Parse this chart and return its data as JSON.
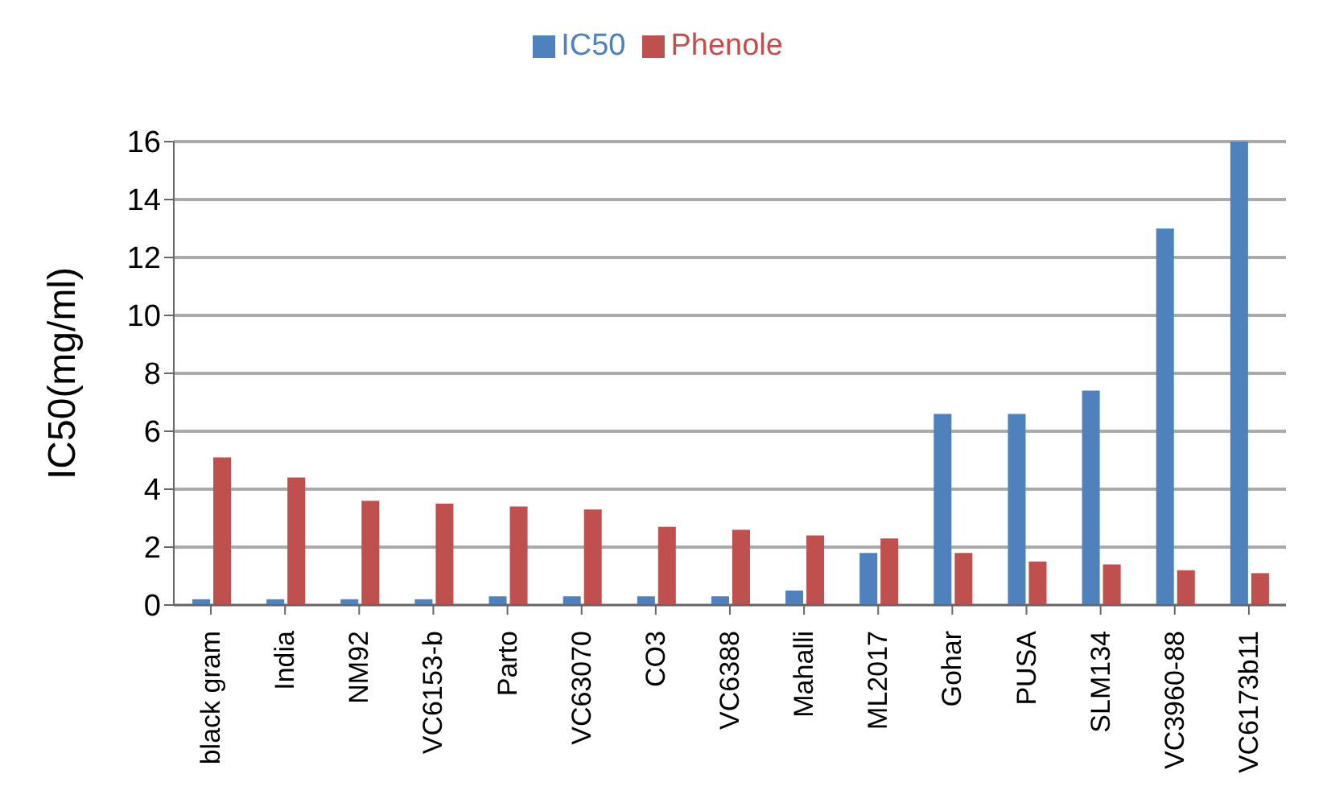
{
  "chart_data": {
    "type": "bar",
    "ylabel": "IC50(mg/ml)",
    "categories": [
      "black gram",
      "India",
      "NM92",
      "VC6153-b",
      "Parto",
      "VC63070",
      "CO3",
      "VC6388",
      "Mahalli",
      "ML2017",
      "Gohar",
      "PUSA",
      "SLM134",
      "VC3960-88",
      "VC6173b11"
    ],
    "series": [
      {
        "name": "IC50",
        "color": "#4f81bd",
        "values": [
          0.2,
          0.2,
          0.2,
          0.2,
          0.3,
          0.3,
          0.3,
          0.3,
          0.5,
          1.8,
          6.6,
          6.6,
          7.4,
          13,
          16
        ]
      },
      {
        "name": "Phenole",
        "color": "#c0504d",
        "values": [
          5.1,
          4.4,
          3.6,
          3.5,
          3.4,
          3.3,
          2.7,
          2.6,
          2.4,
          2.3,
          1.8,
          1.5,
          1.4,
          1.2,
          1.1
        ]
      }
    ],
    "ylim": [
      0,
      16
    ],
    "yticks": [
      0,
      2,
      4,
      6,
      8,
      10,
      12,
      14,
      16
    ],
    "grid": "y",
    "legend": "top"
  }
}
